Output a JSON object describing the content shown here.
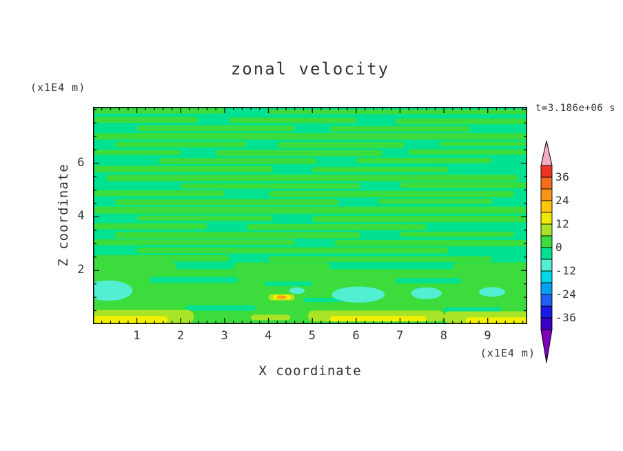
{
  "title": "zonal velocity",
  "timestamp": "t=3.186e+06 s",
  "axes": {
    "x": {
      "label": "X coordinate",
      "unit": "(x1E4 m)",
      "min": 0,
      "max": 9.9,
      "major_ticks": [
        1,
        2,
        3,
        4,
        5,
        6,
        7,
        8,
        9
      ],
      "minor_step": 0.2
    },
    "z": {
      "label": "Z coordinate",
      "unit": "(x1E4 m)",
      "min": 0,
      "max": 8.1,
      "major_ticks": [
        2,
        4,
        6
      ],
      "minor_step": 0.5
    }
  },
  "colorbar": {
    "labels": [
      "36",
      "24",
      "12",
      "0",
      "-12",
      "-24",
      "-36"
    ],
    "segment_colors_top_to_bottom": [
      "#EE3226",
      "#F66B1C",
      "#FB9318",
      "#FDC50D",
      "#F0E802",
      "#AAE426",
      "#3CDC3C",
      "#00E291",
      "#52EFD2",
      "#00D8E8",
      "#00A0F2",
      "#2060F0",
      "#1A1AE4",
      "#3A00C8"
    ],
    "arrow_top_color": "#F2ACC0",
    "arrow_bottom_color": "#7C00B8",
    "outline_color": "#000000"
  },
  "chart_data": {
    "type": "heatmap",
    "title": "zonal velocity",
    "xlabel": "X coordinate",
    "ylabel": "Z coordinate",
    "units": "(x1E4 m)",
    "time_label": "t=3.186e+06 s",
    "xlim": [
      0,
      9.9
    ],
    "ylim": [
      0,
      8.1
    ],
    "contour_levels": [
      -42,
      -36,
      -30,
      -24,
      -18,
      -12,
      -6,
      0,
      6,
      12,
      18,
      24,
      30,
      36,
      42
    ],
    "background_color_key": "springgreen",
    "background_value_band": "-6 to 0",
    "palette": {
      "springgreen": "#00E291",
      "green": "#3CDC3C",
      "turquoise": "#52EFD2",
      "yellowgreen": "#AAE426",
      "yellow": "#F2F200",
      "orange": "#FFA01E"
    },
    "field_shapes": [
      {
        "k": "r",
        "x": 0.0,
        "z": 7.95,
        "w": 3.0,
        "h": 0.2,
        "c": "green"
      },
      {
        "k": "r",
        "x": 4.0,
        "z": 7.92,
        "w": 5.9,
        "h": 0.18,
        "c": "green"
      },
      {
        "k": "r",
        "x": 0.0,
        "z": 7.62,
        "w": 2.4,
        "h": 0.22,
        "c": "green"
      },
      {
        "k": "r",
        "x": 3.1,
        "z": 7.6,
        "w": 2.9,
        "h": 0.2,
        "c": "green"
      },
      {
        "k": "r",
        "x": 6.9,
        "z": 7.56,
        "w": 3.0,
        "h": 0.22,
        "c": "green"
      },
      {
        "k": "r",
        "x": 1.0,
        "z": 7.3,
        "w": 3.6,
        "h": 0.22,
        "c": "green"
      },
      {
        "k": "r",
        "x": 5.4,
        "z": 7.28,
        "w": 3.2,
        "h": 0.2,
        "c": "green"
      },
      {
        "k": "r",
        "x": 0.0,
        "z": 7.0,
        "w": 9.9,
        "h": 0.24,
        "c": "green"
      },
      {
        "k": "r",
        "x": 0.5,
        "z": 6.7,
        "w": 3.0,
        "h": 0.2,
        "c": "green"
      },
      {
        "k": "r",
        "x": 4.2,
        "z": 6.68,
        "w": 2.9,
        "h": 0.22,
        "c": "green"
      },
      {
        "k": "r",
        "x": 7.9,
        "z": 6.72,
        "w": 2.0,
        "h": 0.18,
        "c": "green"
      },
      {
        "k": "r",
        "x": 0.0,
        "z": 6.4,
        "w": 2.0,
        "h": 0.2,
        "c": "green"
      },
      {
        "k": "r",
        "x": 2.8,
        "z": 6.38,
        "w": 3.8,
        "h": 0.24,
        "c": "green"
      },
      {
        "k": "r",
        "x": 7.2,
        "z": 6.42,
        "w": 2.7,
        "h": 0.2,
        "c": "green"
      },
      {
        "k": "r",
        "x": 1.5,
        "z": 6.08,
        "w": 3.6,
        "h": 0.22,
        "c": "green"
      },
      {
        "k": "r",
        "x": 6.0,
        "z": 6.1,
        "w": 3.1,
        "h": 0.2,
        "c": "green"
      },
      {
        "k": "r",
        "x": 0.0,
        "z": 5.78,
        "w": 4.1,
        "h": 0.24,
        "c": "green"
      },
      {
        "k": "r",
        "x": 5.0,
        "z": 5.76,
        "w": 3.1,
        "h": 0.2,
        "c": "green"
      },
      {
        "k": "r",
        "x": 0.3,
        "z": 5.45,
        "w": 9.4,
        "h": 0.24,
        "c": "green"
      },
      {
        "k": "r",
        "x": 2.0,
        "z": 5.15,
        "w": 4.1,
        "h": 0.2,
        "c": "green"
      },
      {
        "k": "r",
        "x": 7.0,
        "z": 5.18,
        "w": 2.9,
        "h": 0.22,
        "c": "green"
      },
      {
        "k": "r",
        "x": 0.0,
        "z": 4.88,
        "w": 3.0,
        "h": 0.22,
        "c": "green"
      },
      {
        "k": "r",
        "x": 4.0,
        "z": 4.85,
        "w": 5.6,
        "h": 0.24,
        "c": "green"
      },
      {
        "k": "r",
        "x": 0.5,
        "z": 4.55,
        "w": 5.1,
        "h": 0.22,
        "c": "green"
      },
      {
        "k": "r",
        "x": 6.5,
        "z": 4.58,
        "w": 2.6,
        "h": 0.2,
        "c": "green"
      },
      {
        "k": "r",
        "x": 0.0,
        "z": 4.25,
        "w": 9.9,
        "h": 0.26,
        "c": "green"
      },
      {
        "k": "r",
        "x": 1.0,
        "z": 3.95,
        "w": 3.1,
        "h": 0.2,
        "c": "green"
      },
      {
        "k": "r",
        "x": 5.0,
        "z": 3.92,
        "w": 4.9,
        "h": 0.24,
        "c": "green"
      },
      {
        "k": "r",
        "x": 0.0,
        "z": 3.65,
        "w": 2.6,
        "h": 0.22,
        "c": "green"
      },
      {
        "k": "r",
        "x": 3.5,
        "z": 3.62,
        "w": 4.1,
        "h": 0.22,
        "c": "green"
      },
      {
        "k": "r",
        "x": 0.5,
        "z": 3.32,
        "w": 5.6,
        "h": 0.24,
        "c": "green"
      },
      {
        "k": "r",
        "x": 7.0,
        "z": 3.35,
        "w": 2.6,
        "h": 0.2,
        "c": "green"
      },
      {
        "k": "r",
        "x": 0.0,
        "z": 3.05,
        "w": 4.6,
        "h": 0.22,
        "c": "green"
      },
      {
        "k": "r",
        "x": 5.5,
        "z": 3.02,
        "w": 4.4,
        "h": 0.24,
        "c": "green"
      },
      {
        "k": "r",
        "x": 1.0,
        "z": 2.75,
        "w": 7.1,
        "h": 0.22,
        "c": "green"
      },
      {
        "k": "r",
        "x": 0.0,
        "z": 2.45,
        "w": 3.1,
        "h": 0.24,
        "c": "green"
      },
      {
        "k": "r",
        "x": 4.0,
        "z": 2.42,
        "w": 5.1,
        "h": 0.22,
        "c": "green"
      },
      {
        "k": "r",
        "x": -0.2,
        "z": 1.0,
        "w": 10.3,
        "h": 2.1,
        "c": "green"
      },
      {
        "k": "r",
        "x": -0.2,
        "z": 2.1,
        "w": 2.1,
        "h": 0.5,
        "c": "green"
      },
      {
        "k": "r",
        "x": 3.2,
        "z": 2.1,
        "w": 2.2,
        "h": 0.4,
        "c": "green"
      },
      {
        "k": "r",
        "x": 8.2,
        "z": 2.1,
        "w": 1.9,
        "h": 0.4,
        "c": "green"
      },
      {
        "k": "r",
        "x": 1.3,
        "z": 1.65,
        "w": 2.0,
        "h": 0.22,
        "c": "springgreen"
      },
      {
        "k": "r",
        "x": 3.9,
        "z": 1.5,
        "w": 1.1,
        "h": 0.18,
        "c": "springgreen"
      },
      {
        "k": "r",
        "x": 6.9,
        "z": 1.62,
        "w": 1.5,
        "h": 0.2,
        "c": "springgreen"
      },
      {
        "k": "r",
        "x": 2.1,
        "z": 0.6,
        "w": 1.6,
        "h": 0.2,
        "c": "springgreen"
      },
      {
        "k": "r",
        "x": 8.0,
        "z": 0.55,
        "w": 1.3,
        "h": 0.18,
        "c": "springgreen"
      },
      {
        "k": "r",
        "x": 4.8,
        "z": 0.9,
        "w": 0.9,
        "h": 0.16,
        "c": "springgreen"
      },
      {
        "k": "e",
        "cx": 0.35,
        "cz": 1.25,
        "rx": 0.55,
        "rz": 0.38,
        "c": "turquoise"
      },
      {
        "k": "e",
        "cx": 6.05,
        "cz": 1.1,
        "rx": 0.6,
        "rz": 0.3,
        "c": "turquoise"
      },
      {
        "k": "e",
        "cx": 7.6,
        "cz": 1.15,
        "rx": 0.35,
        "rz": 0.22,
        "c": "turquoise"
      },
      {
        "k": "e",
        "cx": 4.65,
        "cz": 1.25,
        "rx": 0.18,
        "rz": 0.12,
        "c": "turquoise"
      },
      {
        "k": "e",
        "cx": 9.1,
        "cz": 1.2,
        "rx": 0.3,
        "rz": 0.18,
        "c": "turquoise"
      },
      {
        "k": "r",
        "x": -0.2,
        "z": 0.28,
        "w": 2.5,
        "h": 0.5,
        "c": "yellowgreen"
      },
      {
        "k": "r",
        "x": 4.9,
        "z": 0.3,
        "w": 3.1,
        "h": 0.4,
        "c": "yellowgreen"
      },
      {
        "k": "r",
        "x": 8.0,
        "z": 0.25,
        "w": 2.1,
        "h": 0.45,
        "c": "yellowgreen"
      },
      {
        "k": "r",
        "x": 3.6,
        "z": 0.25,
        "w": 0.9,
        "h": 0.2,
        "c": "yellowgreen"
      },
      {
        "k": "r",
        "x": -0.2,
        "z": 0.16,
        "w": 1.9,
        "h": 0.28,
        "c": "yellow"
      },
      {
        "k": "r",
        "x": 5.4,
        "z": 0.2,
        "w": 2.2,
        "h": 0.2,
        "c": "yellow"
      },
      {
        "k": "r",
        "x": 8.5,
        "z": 0.14,
        "w": 1.6,
        "h": 0.22,
        "c": "yellow"
      },
      {
        "k": "r",
        "x": 4.0,
        "z": 1.0,
        "w": 0.6,
        "h": 0.24,
        "c": "yellowgreen"
      },
      {
        "k": "r",
        "x": 4.1,
        "z": 1.0,
        "w": 0.42,
        "h": 0.16,
        "c": "yellow"
      },
      {
        "k": "e",
        "cx": 4.3,
        "cz": 1.0,
        "rx": 0.11,
        "rz": 0.07,
        "c": "orange"
      }
    ]
  }
}
